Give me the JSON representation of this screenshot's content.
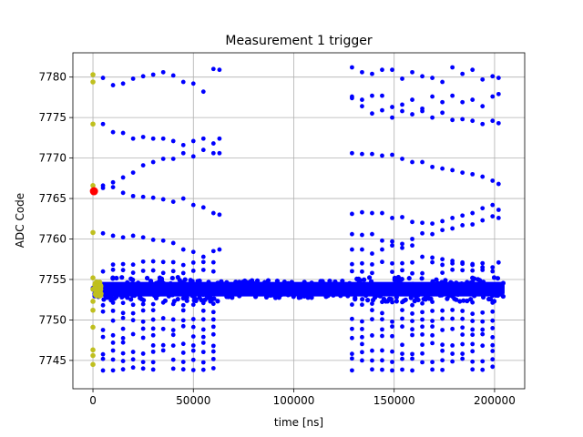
{
  "chart_data": {
    "type": "scatter",
    "title": "Measurement 1 trigger",
    "xlabel": "time [ns]",
    "ylabel": "ADC Code",
    "xlim": [
      -10000,
      215000
    ],
    "ylim": [
      7741.5,
      7783
    ],
    "xticks": [
      0,
      50000,
      100000,
      150000,
      200000
    ],
    "yticks": [
      7745,
      7750,
      7755,
      7760,
      7765,
      7770,
      7775,
      7780
    ],
    "grid": true,
    "colors": {
      "main": "#0000ff",
      "start": "#bfbf1f",
      "marker": "#ff0000"
    },
    "series": [
      {
        "color": "#0000ff",
        "band": {
          "x_range": [
            0,
            205000
          ],
          "y_center": 7753.8,
          "y_halfwidth": 0.9
        },
        "burst_window_1": [
          5000,
          63000
        ],
        "burst_window_2": [
          129000,
          202000
        ],
        "burst_period": 5000,
        "burst_levels": [
          7744,
          7745,
          7746,
          7747,
          7748,
          7749,
          7750,
          7751,
          7752,
          7756,
          7757
        ]
      },
      {
        "color": "#bfbf1f",
        "x": [
          0,
          0,
          0,
          0,
          0,
          0,
          0,
          0,
          0,
          0,
          0,
          0,
          0
        ],
        "y": [
          7780.3,
          7779.4,
          7774.2,
          7766.6,
          7760.8,
          7755.2,
          7753.8,
          7752.3,
          7751.2,
          7749.1,
          7746.3,
          7745.6,
          7744.5
        ]
      },
      {
        "color": "#ff0000",
        "x": [
          500
        ],
        "y": [
          7765.9
        ]
      }
    ],
    "sweeps": [
      {
        "x": [
          5000,
          10000,
          15000,
          20000,
          25000,
          30000,
          35000,
          40000,
          45000,
          50000,
          55000,
          60000,
          63000
        ],
        "y": [
          7779.9,
          7779.0,
          7779.2,
          7779.8,
          7780.1,
          7780.3,
          7780.6,
          7780.2,
          7779.4,
          7779.2,
          7778.2,
          7781.0,
          7780.9
        ]
      },
      {
        "x": [
          5000,
          10000,
          15000,
          20000,
          25000,
          30000,
          35000,
          40000,
          45000,
          50000,
          55000,
          60000,
          63000
        ],
        "y": [
          7774.2,
          7773.2,
          7773.1,
          7772.4,
          7772.6,
          7772.4,
          7772.4,
          7772.1,
          7771.6,
          7772.1,
          7772.4,
          7771.8,
          7772.4
        ]
      },
      {
        "x": [
          5000,
          10000,
          15000,
          20000,
          25000,
          30000,
          35000,
          40000,
          45000,
          50000,
          55000,
          60000,
          63000
        ],
        "y": [
          7766.3,
          7767.0,
          7767.6,
          7768.2,
          7769.1,
          7769.5,
          7769.9,
          7769.9,
          7770.6,
          7770.2,
          7771.0,
          7770.6,
          7770.6
        ]
      },
      {
        "x": [
          5000,
          10000,
          15000,
          20000,
          25000,
          30000,
          35000,
          40000,
          45000,
          50000,
          55000,
          60000,
          63000
        ],
        "y": [
          7766.6,
          7766.4,
          7765.7,
          7765.3,
          7765.2,
          7765.1,
          7764.9,
          7764.6,
          7765.0,
          7764.2,
          7763.9,
          7763.2,
          7763.0
        ]
      },
      {
        "x": [
          5000,
          10000,
          15000,
          20000,
          25000,
          30000,
          35000,
          40000,
          45000,
          50000,
          55000,
          60000,
          63000
        ],
        "y": [
          7760.7,
          7760.4,
          7760.2,
          7760.4,
          7760.2,
          7759.9,
          7759.8,
          7759.5,
          7758.7,
          7758.4,
          7757.8,
          7758.5,
          7758.7
        ]
      },
      {
        "x": [
          129000,
          134000,
          139000,
          144000,
          149000,
          154000,
          159000,
          164000,
          169000,
          174000,
          179000,
          184000,
          189000,
          194000,
          199000,
          202000
        ],
        "y": [
          7781.2,
          7780.6,
          7780.4,
          7780.9,
          7780.9,
          7779.8,
          7780.6,
          7780.1,
          7779.9,
          7779.4,
          7781.2,
          7780.4,
          7780.9,
          7779.7,
          7780.1,
          7779.9
        ]
      },
      {
        "x": [
          129000,
          134000,
          139000,
          144000,
          149000,
          154000,
          159000,
          164000,
          169000,
          174000,
          179000,
          184000,
          189000,
          194000,
          199000,
          202000
        ],
        "y": [
          7777.6,
          7777.2,
          7777.7,
          7777.7,
          7776.3,
          7776.6,
          7777.2,
          7776.1,
          7777.6,
          7776.9,
          7777.7,
          7776.9,
          7777.2,
          7776.4,
          7777.6,
          7777.9
        ]
      },
      {
        "x": [
          129000,
          134000,
          139000,
          144000,
          149000,
          154000,
          159000,
          164000,
          169000,
          174000,
          179000,
          184000,
          189000,
          194000,
          199000,
          202000
        ],
        "y": [
          7777.4,
          7776.4,
          7775.5,
          7775.9,
          7775.0,
          7775.8,
          7775.4,
          7775.8,
          7775.0,
          7775.6,
          7774.7,
          7774.8,
          7774.6,
          7774.2,
          7774.6,
          7774.3
        ]
      },
      {
        "x": [
          129000,
          134000,
          139000,
          144000,
          149000,
          154000,
          159000,
          164000,
          169000,
          174000,
          179000,
          184000,
          189000,
          194000,
          199000,
          202000
        ],
        "y": [
          7770.6,
          7770.5,
          7770.5,
          7770.3,
          7770.4,
          7769.9,
          7769.5,
          7769.5,
          7768.9,
          7768.7,
          7768.5,
          7768.2,
          7768.0,
          7767.7,
          7767.2,
          7766.8
        ]
      },
      {
        "x": [
          129000,
          134000,
          139000,
          144000,
          149000,
          154000,
          159000,
          164000,
          169000,
          174000,
          179000,
          184000,
          189000,
          194000,
          199000,
          202000
        ],
        "y": [
          7763.1,
          7763.3,
          7763.2,
          7763.2,
          7762.6,
          7762.7,
          7762.1,
          7762.0,
          7761.9,
          7762.2,
          7762.6,
          7762.9,
          7763.2,
          7763.8,
          7764.2,
          7763.6
        ]
      },
      {
        "x": [
          129000,
          134000,
          139000,
          144000,
          149000,
          154000,
          159000,
          164000,
          169000,
          174000,
          179000,
          184000,
          189000,
          194000,
          199000,
          202000
        ],
        "y": [
          7760.6,
          7760.5,
          7760.6,
          7759.8,
          7759.7,
          7759.4,
          7760.0,
          7760.7,
          7760.6,
          7761.1,
          7761.3,
          7761.7,
          7761.8,
          7762.3,
          7762.8,
          7762.6
        ]
      },
      {
        "x": [
          129000,
          134000,
          139000,
          144000,
          149000,
          154000,
          159000,
          164000,
          169000,
          174000,
          179000,
          184000,
          189000,
          194000,
          199000,
          202000
        ],
        "y": [
          7758.7,
          7758.7,
          7758.2,
          7758.7,
          7759.2,
          7758.9,
          7759.2,
          7757.8,
          7757.7,
          7757.5,
          7757.3,
          7757.1,
          7756.9,
          7756.5,
          7756.5,
          7757.1
        ]
      }
    ]
  }
}
